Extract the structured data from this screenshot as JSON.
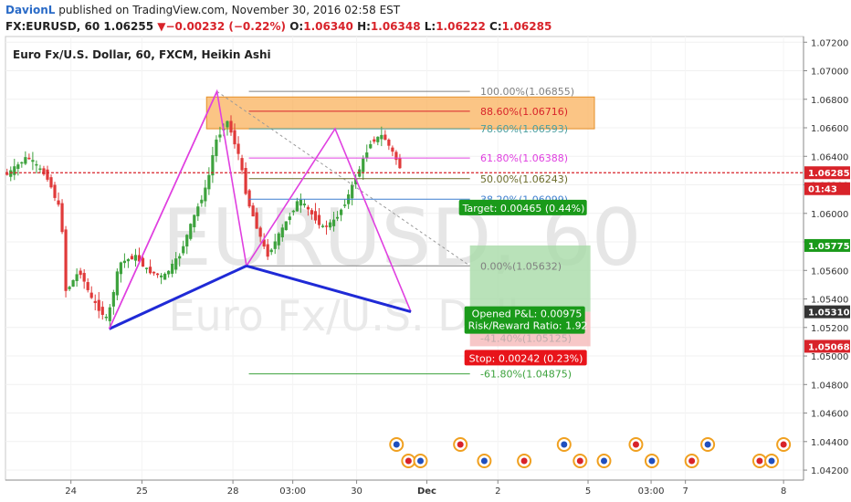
{
  "header": {
    "author": "DavionL",
    "published": "published on TradingView.com, November 30, 2016 02:58 EST",
    "symbol_interval": "FX:EURUSD, 60",
    "last": "1.06255",
    "change": "−0.00232 (−0.22%)",
    "o_label": "O:",
    "o": "1.06340",
    "h_label": "H:",
    "h": "1.06348",
    "l_label": "L:",
    "l": "1.06222",
    "c_label": "C:",
    "c": "1.06285"
  },
  "chart_title": "Euro Fx/U.S. Dollar, 60, FXCM, Heikin Ashi",
  "watermark": {
    "line1": "EURUSD, 60",
    "line2": "Euro Fx/U.S. Dollar"
  },
  "colors": {
    "up": "#3da23d",
    "down": "#e03a3a",
    "pattern": "#e040e0",
    "base_line": "#1f2ad6",
    "fib_zone": "#f9b15c",
    "price_line": "#d8232a",
    "target_box": "#1a9a1a",
    "stop_box": "#e8141a"
  },
  "chart_data": {
    "type": "candlestick",
    "style": "Heikin Ashi",
    "y_axis": {
      "range": [
        1.0413,
        1.0724
      ],
      "ticks": [
        "1.07200",
        "1.07000",
        "1.06800",
        "1.06600",
        "1.06400",
        "1.06200",
        "1.06000",
        "1.05800",
        "1.05600",
        "1.05400",
        "1.05200",
        "1.05000",
        "1.04800",
        "1.04600",
        "1.04400",
        "1.04200"
      ]
    },
    "x_axis": {
      "ticks": [
        "24",
        "25",
        "28",
        "03:00",
        "30",
        "Dec",
        "2",
        "5",
        "03:00",
        "7",
        "8"
      ],
      "bold_tick": "Dec"
    },
    "price_labels": [
      {
        "text": "1.06285",
        "value": 1.06285,
        "color": "#d8232a"
      },
      {
        "text": "01:43",
        "value": 1.06173,
        "color": "#d8232a"
      },
      {
        "text": "1.05775",
        "value": 1.05775,
        "color": "#1a9a1a"
      },
      {
        "text": "1.05310",
        "value": 1.0531,
        "color": "#333333"
      },
      {
        "text": "1.05068",
        "value": 1.05068,
        "color": "#d8232a"
      }
    ],
    "fib_levels": [
      {
        "text": "100.00%(1.06855)",
        "value": 1.06855,
        "color": "#808080"
      },
      {
        "text": "88.60%(1.06716)",
        "value": 1.06716,
        "color": "#d8232a"
      },
      {
        "text": "78.60%(1.06593)",
        "value": 1.06593,
        "color": "#4b9fa0"
      },
      {
        "text": "61.80%(1.06388)",
        "value": 1.06388,
        "color": "#e040e0"
      },
      {
        "text": "50.00%(1.06243)",
        "value": 1.06243,
        "color": "#6b6b2a"
      },
      {
        "text": "38.20%(1.06099)",
        "value": 1.06099,
        "color": "#3f7fd0"
      },
      {
        "text": "0.00%(1.05632)",
        "value": 1.05632,
        "color": "#808080"
      },
      {
        "text": "-61.80%(1.04875)",
        "value": 1.04875,
        "color": "#3da23d"
      }
    ],
    "hidden_fib_text": "-41.40%(1.05125)",
    "harmonic_points": [
      {
        "t": 0.13,
        "price": 1.0519
      },
      {
        "t": 0.265,
        "price": 1.06855
      },
      {
        "t": 0.302,
        "price": 1.05632
      },
      {
        "t": 0.413,
        "price": 1.06593
      },
      {
        "t": 0.508,
        "price": 1.0531
      }
    ],
    "position": {
      "target_text": "Target: 0.00465 (0.44%)",
      "opened_pl": "Opened P&L: 0.00975",
      "risk_reward": "Risk/Reward Ratio: 1.92",
      "stop_text": "Stop: 0.00242 (0.23%)",
      "entry": 1.0531,
      "target": 1.05775,
      "stop": 1.05068
    },
    "current_price": 1.06285
  }
}
